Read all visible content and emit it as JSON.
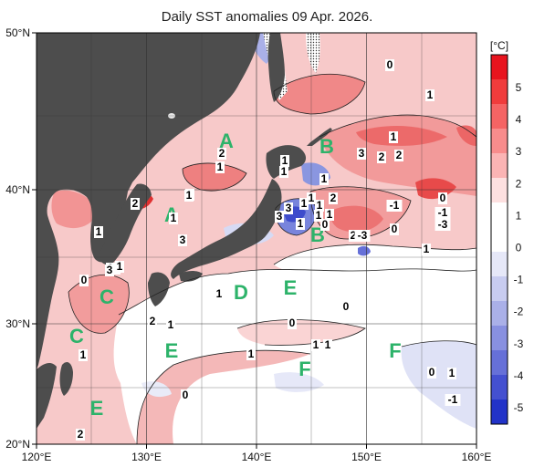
{
  "title": "Daily SST anomalies 09 Apr. 2026.",
  "x_ticks": [
    "120°E",
    "130°E",
    "140°E",
    "150°E",
    "160°E"
  ],
  "y_ticks": [
    "50°N",
    "40°N",
    "30°N",
    "20°N"
  ],
  "colorbar": {
    "unit": "[°C]",
    "labels": [
      "5",
      "4",
      "3",
      "2",
      "1",
      "0",
      "-1",
      "-2",
      "-3",
      "-4",
      "-5"
    ],
    "colors": [
      "#e8141e",
      "#f03c3c",
      "#f56464",
      "#f88c8c",
      "#fbb4b4",
      "#fde0e0",
      "#ffffff",
      "#ffffff",
      "#e6e8f8",
      "#c8ccf0",
      "#aab0e8",
      "#8890e0",
      "#6670d8",
      "#4450d0",
      "#2233c8"
    ]
  },
  "colors": {
    "land": "#4d4d4d",
    "ocean_base": "#f7c9c9"
  },
  "regions": [
    {
      "id": "A",
      "label": "A"
    },
    {
      "id": "A2",
      "label": "A"
    },
    {
      "id": "B",
      "label": "B"
    },
    {
      "id": "B2",
      "label": "B"
    },
    {
      "id": "C",
      "label": "C"
    },
    {
      "id": "C2",
      "label": "C"
    },
    {
      "id": "D",
      "label": "D"
    },
    {
      "id": "E",
      "label": "E"
    },
    {
      "id": "E2",
      "label": "E"
    },
    {
      "id": "E3",
      "label": "E"
    },
    {
      "id": "F",
      "label": "F"
    },
    {
      "id": "F2",
      "label": "F"
    }
  ],
  "anomaly_labels": [
    "0",
    "1",
    "1",
    "2",
    "2",
    "3",
    "1",
    "2",
    "1",
    "1",
    "3",
    "1",
    "2",
    "1",
    "3",
    "1",
    "1",
    "1",
    "1",
    "0",
    "1",
    "1",
    "3",
    "2",
    "2",
    "-3",
    "-1",
    "0",
    "-1",
    "-3",
    "1",
    "3",
    "2",
    "0",
    "1",
    "2",
    "1",
    "1",
    "1",
    "1",
    "0",
    "0",
    "1",
    "0",
    "0",
    "1",
    "-1",
    "0",
    "0",
    "1",
    "2",
    "1",
    "3",
    "1"
  ]
}
